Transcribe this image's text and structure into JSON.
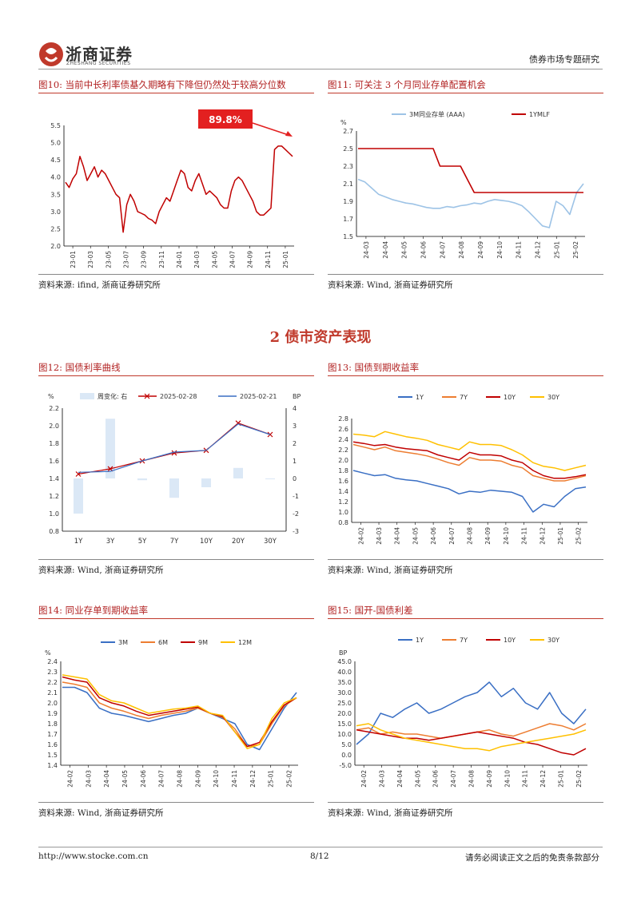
{
  "header": {
    "brand_cn": "浙商证券",
    "brand_en": "ZHESHANG SECURITIES",
    "report_type": "债券市场专题研究"
  },
  "colors": {
    "brand_red": "#c0392b",
    "series_blue": "#3a6fc4",
    "series_orange": "#ed7d31",
    "series_darkred": "#c00000",
    "series_yellow": "#ffc000",
    "light_blue": "#9dc3e6"
  },
  "section": {
    "title": "2 债市资产表现"
  },
  "figures": [
    {
      "title": "图10:  当前中长利率债基久期略有下降但仍然处于较高分位数",
      "source": "资料来源:  ifind, 浙商证券研究所"
    },
    {
      "title": "图11:  可关注 3 个月同业存单配置机会",
      "source": "资料来源:  Wind, 浙商证券研究所"
    },
    {
      "title": "图12:  国债利率曲线",
      "source": "资料来源:  Wind, 浙商证券研究所"
    },
    {
      "title": "图13:  国债到期收益率",
      "source": "资料来源:  Wind, 浙商证券研究所"
    },
    {
      "title": "图14:  同业存单到期收益率",
      "source": "资料来源:  Wind, 浙商证券研究所"
    },
    {
      "title": "图15:  国开-国债利差",
      "source": "资料来源:  Wind, 浙商证券研究所"
    }
  ],
  "chart_data": [
    {
      "type": "line",
      "id": "fig10",
      "ylim": [
        2.0,
        5.5
      ],
      "yticks": [
        "5.5",
        "5.0",
        "4.5",
        "4.0",
        "3.5",
        "3.0",
        "2.5",
        "2.0"
      ],
      "xticks": [
        "23-01",
        "23-03",
        "23-05",
        "23-07",
        "23-09",
        "23-11",
        "24-01",
        "24-03",
        "24-05",
        "24-07",
        "24-09",
        "24-11",
        "25-01"
      ],
      "annotation": "89.8%",
      "series": [
        {
          "values": [
            3.85,
            3.7,
            3.95,
            4.1,
            4.6,
            4.3,
            3.9,
            4.1,
            4.3,
            4.0,
            4.2,
            4.1,
            3.9,
            3.7,
            3.5,
            3.4,
            2.4,
            3.2,
            3.5,
            3.3,
            3.0,
            2.95,
            2.9,
            2.8,
            2.75,
            2.65,
            3.0,
            3.2,
            3.4,
            3.3,
            3.6,
            3.9,
            4.2,
            4.1,
            3.7,
            3.6,
            3.9,
            4.1,
            3.8,
            3.5,
            3.6,
            3.5,
            3.4,
            3.2,
            3.1,
            3.1,
            3.6,
            3.9,
            4.0,
            3.9,
            3.7,
            3.5,
            3.3,
            3.0,
            2.9,
            2.9,
            3.0,
            3.1,
            4.8,
            4.9,
            4.9,
            4.8,
            4.7,
            4.6
          ]
        }
      ]
    },
    {
      "type": "line",
      "id": "fig11",
      "unit": "%",
      "ylim": [
        1.5,
        2.7
      ],
      "yticks": [
        "2.7",
        "2.5",
        "2.3",
        "2.1",
        "1.9",
        "1.7",
        "1.5"
      ],
      "xticks": [
        "24-03",
        "24-04",
        "24-05",
        "24-06",
        "24-07",
        "24-08",
        "24-09",
        "24-10",
        "24-11",
        "24-12",
        "25-01",
        "25-02"
      ],
      "series": [
        {
          "name": "3M同业存单 (AAA)",
          "values": [
            2.15,
            2.12,
            2.05,
            1.98,
            1.95,
            1.92,
            1.9,
            1.88,
            1.87,
            1.85,
            1.83,
            1.82,
            1.82,
            1.84,
            1.83,
            1.85,
            1.86,
            1.88,
            1.87,
            1.9,
            1.92,
            1.91,
            1.9,
            1.88,
            1.85,
            1.78,
            1.7,
            1.62,
            1.6,
            1.9,
            1.85,
            1.75,
            2.0,
            2.1
          ]
        },
        {
          "name": "1YMLF",
          "values": [
            2.5,
            2.5,
            2.5,
            2.5,
            2.5,
            2.5,
            2.5,
            2.5,
            2.5,
            2.5,
            2.5,
            2.5,
            2.3,
            2.3,
            2.3,
            2.3,
            2.15,
            2.0,
            2.0,
            2.0,
            2.0,
            2.0,
            2.0,
            2.0,
            2.0,
            2.0,
            2.0,
            2.0,
            2.0,
            2.0,
            2.0,
            2.0,
            2.0,
            2.0
          ]
        }
      ]
    },
    {
      "type": "bar+line",
      "id": "fig12",
      "unit_left": "%",
      "unit_right": "BP",
      "ylim": [
        0.8,
        2.2
      ],
      "y2lim": [
        -3,
        4
      ],
      "yticks": [
        "2.2",
        "2.0",
        "1.8",
        "1.6",
        "1.4",
        "1.2",
        "1.0",
        "0.8"
      ],
      "y2ticks": [
        "4",
        "3",
        "2",
        "1",
        "0",
        "-1",
        "-2",
        "-3"
      ],
      "categories": [
        "1Y",
        "3Y",
        "5Y",
        "7Y",
        "10Y",
        "20Y",
        "30Y"
      ],
      "bar_series": {
        "name": "周变化: 右",
        "values": [
          -2.0,
          3.4,
          -0.1,
          -1.1,
          -0.5,
          0.6,
          0.0
        ]
      },
      "series": [
        {
          "name": "2025-02-28",
          "values": [
            1.45,
            1.51,
            1.6,
            1.69,
            1.72,
            2.03,
            1.9
          ]
        },
        {
          "name": "2025-02-21",
          "values": [
            1.47,
            1.48,
            1.6,
            1.7,
            1.72,
            2.02,
            1.9
          ]
        }
      ]
    },
    {
      "type": "line",
      "id": "fig13",
      "ylim": [
        0.8,
        2.8
      ],
      "yticks": [
        "2.8",
        "2.6",
        "2.4",
        "2.2",
        "2.0",
        "1.8",
        "1.6",
        "1.4",
        "1.2",
        "1.0",
        "0.8"
      ],
      "xticks": [
        "24-02",
        "24-03",
        "24-04",
        "24-05",
        "24-06",
        "24-07",
        "24-08",
        "24-09",
        "24-10",
        "24-11",
        "24-12",
        "25-01",
        "25-02"
      ],
      "series": [
        {
          "name": "1Y",
          "values": [
            1.8,
            1.75,
            1.7,
            1.72,
            1.65,
            1.62,
            1.6,
            1.55,
            1.5,
            1.45,
            1.35,
            1.4,
            1.38,
            1.42,
            1.4,
            1.38,
            1.3,
            1.0,
            1.15,
            1.1,
            1.3,
            1.45,
            1.48
          ]
        },
        {
          "name": "7Y",
          "values": [
            2.3,
            2.25,
            2.2,
            2.25,
            2.18,
            2.15,
            2.12,
            2.08,
            2.02,
            1.95,
            1.9,
            2.05,
            2.0,
            2.0,
            1.98,
            1.9,
            1.85,
            1.7,
            1.65,
            1.6,
            1.6,
            1.65,
            1.7
          ]
        },
        {
          "name": "10Y",
          "values": [
            2.35,
            2.32,
            2.28,
            2.3,
            2.25,
            2.22,
            2.2,
            2.18,
            2.1,
            2.05,
            2.0,
            2.15,
            2.1,
            2.1,
            2.08,
            2.0,
            1.95,
            1.8,
            1.7,
            1.65,
            1.65,
            1.68,
            1.72
          ]
        },
        {
          "name": "30Y",
          "values": [
            2.5,
            2.48,
            2.45,
            2.55,
            2.5,
            2.45,
            2.42,
            2.38,
            2.3,
            2.25,
            2.2,
            2.35,
            2.3,
            2.3,
            2.28,
            2.2,
            2.1,
            1.95,
            1.88,
            1.85,
            1.8,
            1.85,
            1.9
          ]
        }
      ]
    },
    {
      "type": "line",
      "id": "fig14",
      "unit": "%",
      "ylim": [
        1.4,
        2.4
      ],
      "yticks": [
        "2.4",
        "2.3",
        "2.2",
        "2.1",
        "2.0",
        "1.9",
        "1.8",
        "1.7",
        "1.6",
        "1.5",
        "1.4"
      ],
      "xticks": [
        "24-02",
        "24-03",
        "24-04",
        "24-05",
        "24-06",
        "24-07",
        "24-08",
        "24-09",
        "24-10",
        "24-11",
        "24-12",
        "25-01",
        "25-02"
      ],
      "series": [
        {
          "name": "3M",
          "values": [
            2.15,
            2.15,
            2.1,
            1.95,
            1.9,
            1.88,
            1.85,
            1.82,
            1.85,
            1.88,
            1.9,
            1.95,
            1.9,
            1.85,
            1.8,
            1.6,
            1.55,
            1.75,
            1.95,
            2.1
          ]
        },
        {
          "name": "6M",
          "values": [
            2.2,
            2.18,
            2.15,
            2.0,
            1.95,
            1.92,
            1.88,
            1.85,
            1.88,
            1.9,
            1.92,
            1.95,
            1.9,
            1.86,
            1.75,
            1.58,
            1.6,
            1.8,
            1.97,
            2.05
          ]
        },
        {
          "name": "9M",
          "values": [
            2.25,
            2.22,
            2.2,
            2.05,
            2.0,
            1.97,
            1.92,
            1.88,
            1.9,
            1.92,
            1.94,
            1.96,
            1.9,
            1.87,
            1.72,
            1.58,
            1.62,
            1.82,
            1.98,
            2.05
          ]
        },
        {
          "name": "12M",
          "values": [
            2.27,
            2.25,
            2.23,
            2.08,
            2.02,
            2.0,
            1.95,
            1.9,
            1.92,
            1.94,
            1.95,
            1.97,
            1.9,
            1.88,
            1.72,
            1.56,
            1.6,
            1.85,
            2.0,
            2.05
          ]
        }
      ]
    },
    {
      "type": "line",
      "id": "fig15",
      "unit": "BP",
      "ylim": [
        -5,
        45
      ],
      "yticks": [
        "45.0",
        "40.0",
        "35.0",
        "30.0",
        "25.0",
        "20.0",
        "15.0",
        "10.0",
        "5.0",
        "0.0",
        "-5.0"
      ],
      "xticks": [
        "24-02",
        "24-03",
        "24-04",
        "24-05",
        "24-06",
        "24-07",
        "24-08",
        "24-09",
        "24-10",
        "24-11",
        "24-12",
        "25-01",
        "25-02"
      ],
      "series": [
        {
          "name": "1Y",
          "values": [
            5,
            10,
            20,
            18,
            22,
            25,
            20,
            22,
            25,
            28,
            30,
            35,
            28,
            32,
            25,
            22,
            30,
            20,
            15,
            22
          ]
        },
        {
          "name": "7Y",
          "values": [
            12,
            13,
            10,
            11,
            10,
            10,
            9,
            8,
            9,
            10,
            11,
            12,
            10,
            9,
            11,
            13,
            15,
            14,
            12,
            15
          ]
        },
        {
          "name": "10Y",
          "values": [
            12,
            11,
            10,
            9,
            8,
            8,
            7,
            8,
            9,
            10,
            11,
            10,
            9,
            8,
            6,
            5,
            3,
            1,
            0,
            3
          ]
        },
        {
          "name": "30Y",
          "values": [
            14,
            15,
            12,
            10,
            8,
            7,
            6,
            5,
            4,
            3,
            3,
            2,
            4,
            5,
            6,
            7,
            8,
            9,
            10,
            12
          ]
        }
      ]
    }
  ],
  "footer": {
    "url": "http://www.stocke.com.cn",
    "page": "8/12",
    "disclaimer": "请务必阅读正文之后的免责条款部分"
  }
}
